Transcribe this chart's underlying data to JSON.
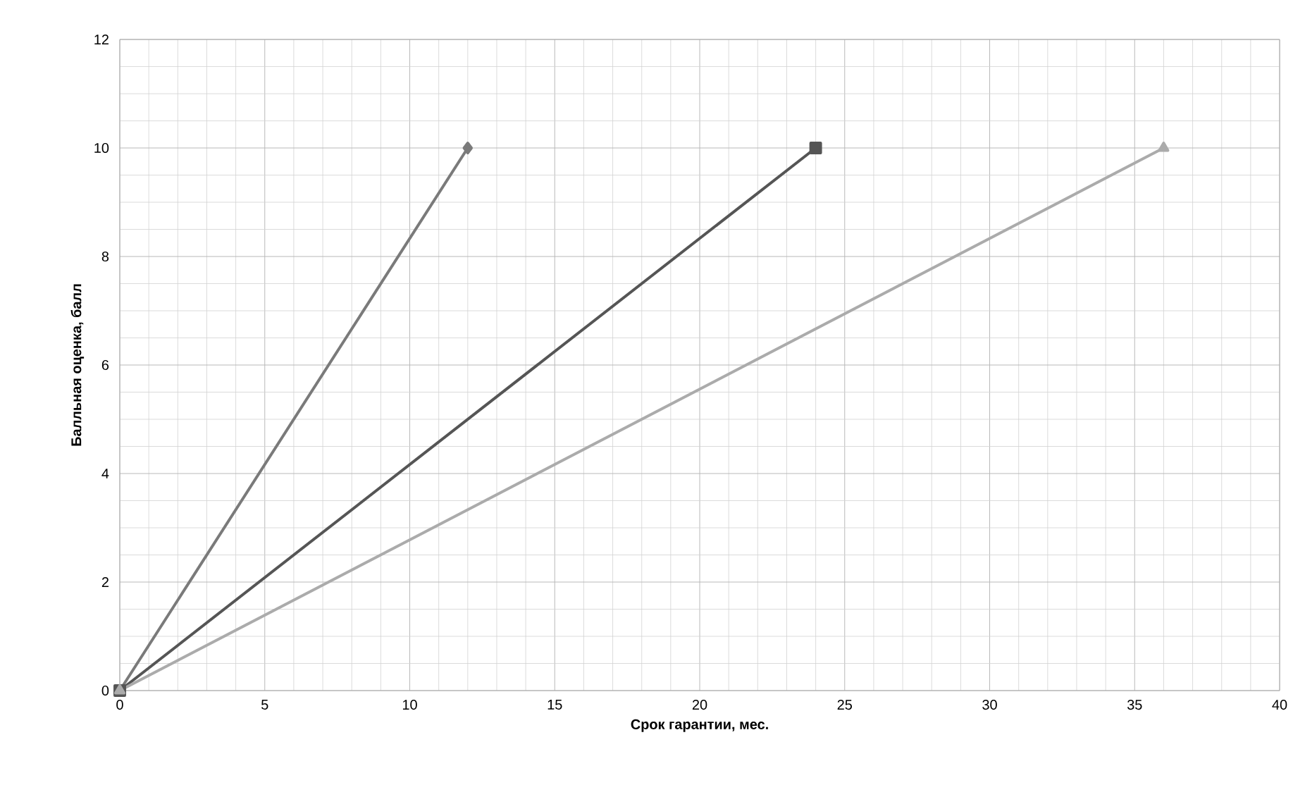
{
  "chart_data": {
    "type": "line",
    "xlabel": "Срок гарантии, мес.",
    "ylabel": "Балльная оценка, балл",
    "xlim": [
      0,
      40
    ],
    "xticks": [
      0,
      5,
      10,
      15,
      20,
      25,
      30,
      35,
      40
    ],
    "ylim": [
      0,
      12
    ],
    "yticks": [
      0,
      2,
      4,
      6,
      8,
      10,
      12
    ],
    "grid": true,
    "series": [
      {
        "x": [
          0,
          12
        ],
        "values": [
          0,
          10
        ],
        "color": "#7a7a7a",
        "marker": "diamond"
      },
      {
        "x": [
          0,
          24
        ],
        "values": [
          0,
          10
        ],
        "color": "#555555",
        "marker": "square"
      },
      {
        "x": [
          0,
          36
        ],
        "values": [
          0,
          10
        ],
        "color": "#ababab",
        "marker": "triangle"
      }
    ]
  }
}
